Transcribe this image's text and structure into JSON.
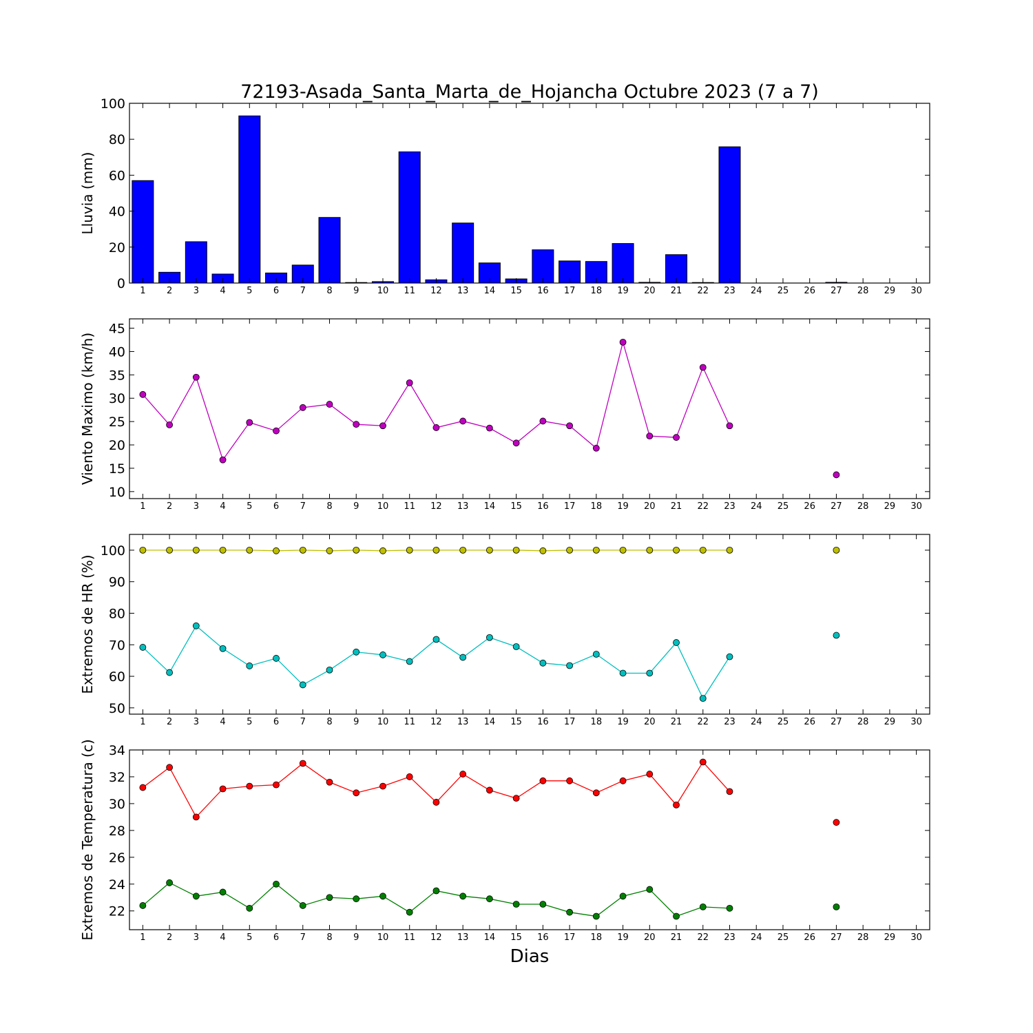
{
  "chart_data": {
    "title": "72193-Asada_Santa_Marta_de_Hojancha Octubre 2023  (7 a 7)",
    "xlabel": "Dias",
    "days": [
      1,
      2,
      3,
      4,
      5,
      6,
      7,
      8,
      9,
      10,
      11,
      12,
      13,
      14,
      15,
      16,
      17,
      18,
      19,
      20,
      21,
      22,
      23,
      24,
      25,
      26,
      27,
      28,
      29,
      30
    ],
    "panels": [
      {
        "type": "bar",
        "ylabel": "Lluvia (mm)",
        "ylim": [
          0,
          100
        ],
        "yticks": [
          0,
          20,
          40,
          60,
          80,
          100
        ],
        "series": [
          {
            "color": "#0000ff",
            "values": [
              57,
              6,
              23,
              5,
              93,
              5.6,
              10,
              36.5,
              0.3,
              0.8,
              73,
              1.8,
              33.4,
              11.2,
              2.3,
              18.5,
              12.3,
              12,
              22,
              0.4,
              15.8,
              0.3,
              75.8,
              0,
              0,
              0,
              0.4,
              0,
              0,
              0
            ]
          }
        ]
      },
      {
        "type": "line",
        "ylabel": "Viento Maximo (km/h)",
        "ylim": [
          8.5,
          47
        ],
        "yticks": [
          10,
          15,
          20,
          25,
          30,
          35,
          40,
          45
        ],
        "series": [
          {
            "color": "#bf00bf",
            "values": [
              30.8,
              24.3,
              34.5,
              16.8,
              24.8,
              23,
              28,
              28.7,
              24.4,
              24.1,
              33.3,
              23.7,
              25.1,
              23.6,
              20.4,
              25.1,
              24.1,
              19.3,
              42,
              21.9,
              21.6,
              36.6,
              24.1,
              null,
              null,
              null,
              13.6,
              null,
              null,
              null
            ]
          }
        ]
      },
      {
        "type": "line",
        "ylabel": "Extremos de HR (%)",
        "ylim": [
          48,
          105
        ],
        "yticks": [
          50,
          60,
          70,
          80,
          90,
          100
        ],
        "series": [
          {
            "color": "#bfbf00",
            "values": [
              100,
              100,
              100,
              100,
              100,
              99.8,
              100,
              99.8,
              100,
              99.8,
              100,
              100,
              100,
              100,
              100,
              99.8,
              100,
              100,
              100,
              100,
              100,
              100,
              100,
              null,
              null,
              null,
              100,
              null,
              null,
              null
            ]
          },
          {
            "color": "#00bfbf",
            "values": [
              69.2,
              61.2,
              76,
              68.8,
              63.3,
              65.7,
              57.3,
              62,
              67.7,
              66.8,
              64.7,
              71.7,
              66,
              72.3,
              69.4,
              64.2,
              63.4,
              67,
              61,
              61,
              70.7,
              53,
              66.2,
              null,
              null,
              null,
              73,
              null,
              null,
              null
            ]
          }
        ]
      },
      {
        "type": "line",
        "ylabel": "Extremos de Temperatura (c)",
        "ylim": [
          20.6,
          34
        ],
        "yticks": [
          22,
          24,
          26,
          28,
          30,
          32,
          34
        ],
        "series": [
          {
            "color": "#ff0000",
            "values": [
              31.2,
              32.7,
              29,
              31.1,
              31.3,
              31.4,
              33,
              31.6,
              30.8,
              31.3,
              32,
              30.1,
              32.2,
              31,
              30.4,
              31.7,
              31.7,
              30.8,
              31.7,
              32.2,
              29.9,
              33.1,
              30.9,
              null,
              null,
              null,
              28.6,
              null,
              null,
              null
            ]
          },
          {
            "color": "#008000",
            "values": [
              22.4,
              24.1,
              23.1,
              23.4,
              22.2,
              24,
              22.4,
              23,
              22.9,
              23.1,
              21.9,
              23.5,
              23.1,
              22.9,
              22.5,
              22.5,
              21.9,
              21.6,
              23.1,
              23.6,
              21.6,
              22.3,
              22.2,
              null,
              null,
              null,
              22.3,
              null,
              null,
              null
            ]
          }
        ]
      }
    ]
  }
}
